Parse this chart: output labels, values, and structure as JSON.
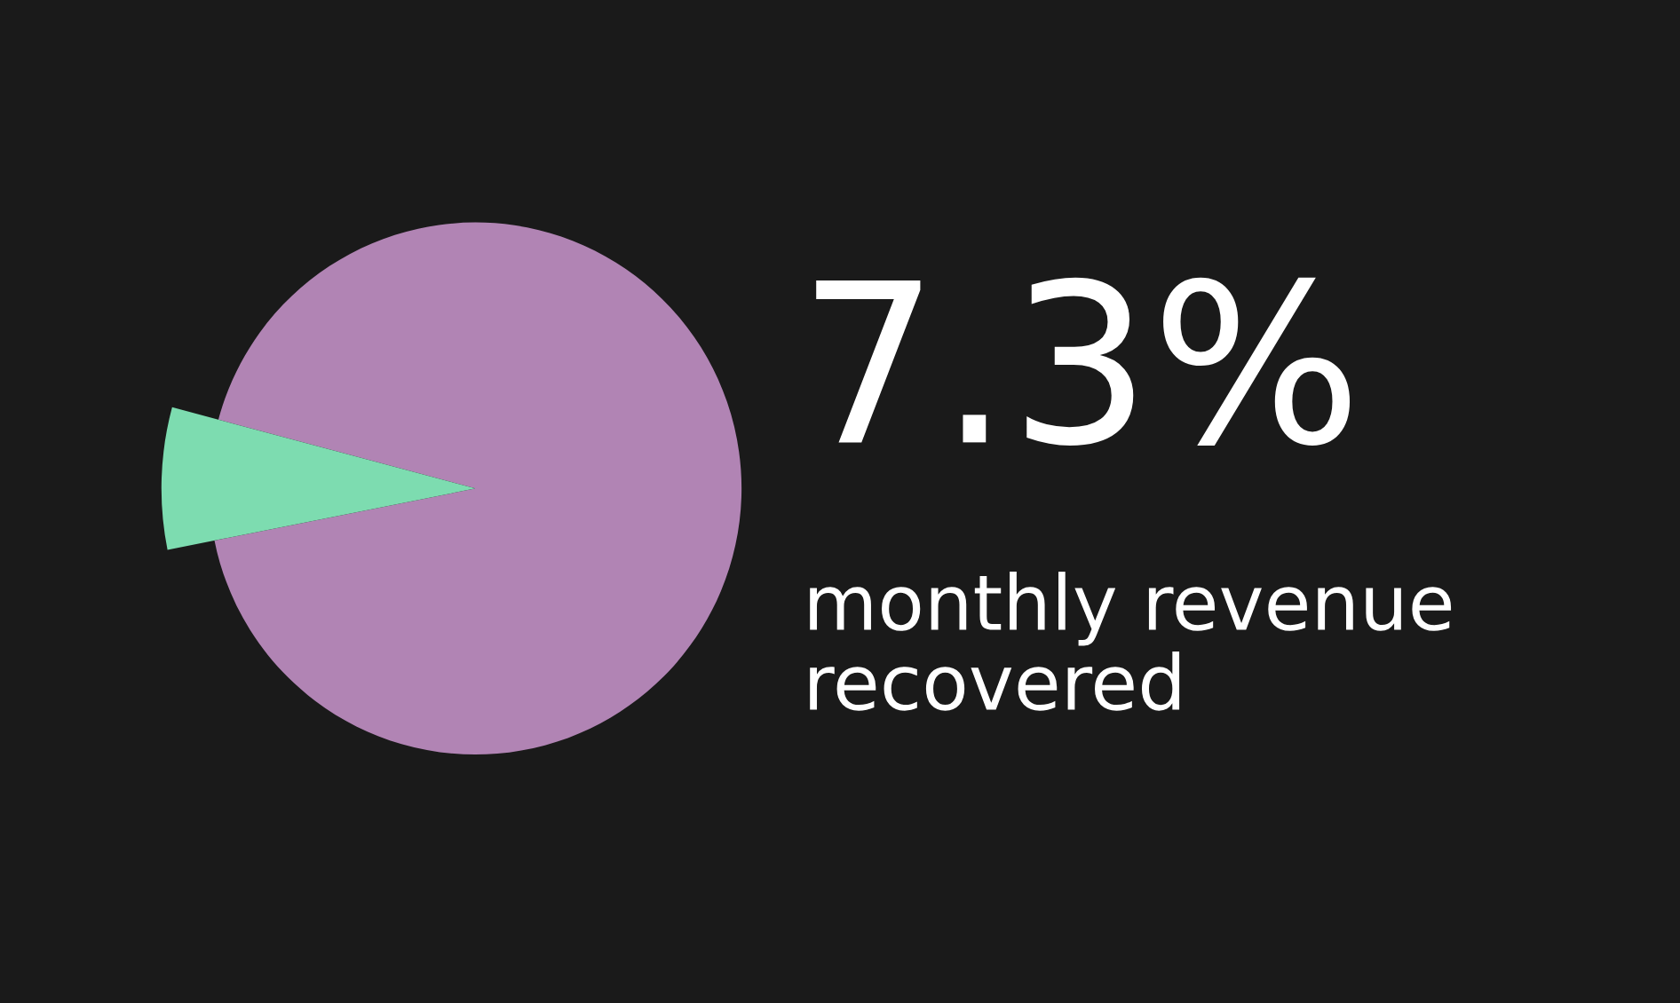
{
  "chart_data": {
    "type": "pie",
    "categories": [
      null,
      null
    ],
    "values": [
      7.3,
      92.7
    ],
    "colors": [
      "#7ddcb0",
      "#b184b4"
    ],
    "title": "7.3%",
    "annotations": [
      "monthly revenue recovered"
    ]
  }
}
